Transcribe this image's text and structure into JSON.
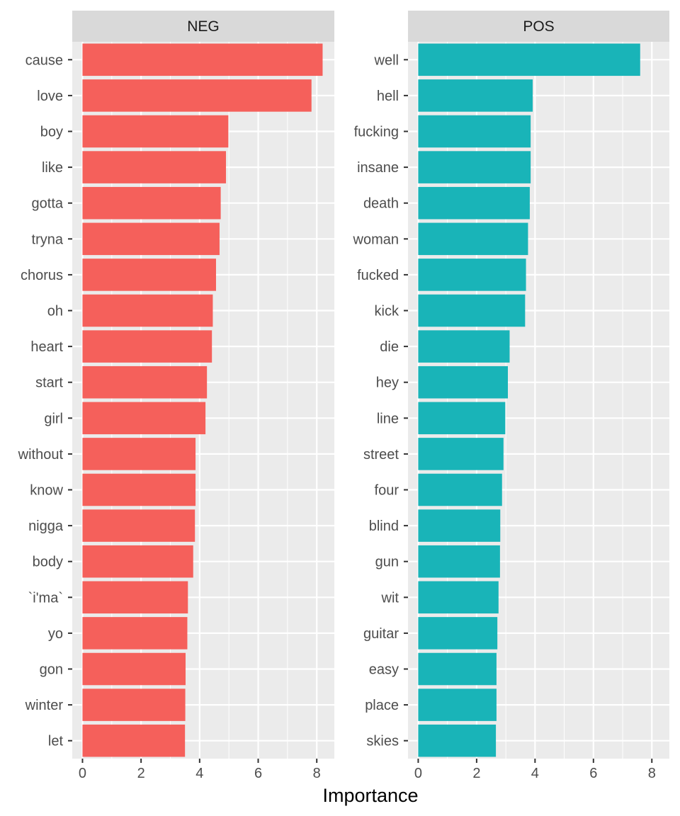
{
  "chart_data": {
    "type": "bar",
    "orientation": "horizontal",
    "xlabel": "Importance",
    "ylabel": "",
    "xlim": [
      -0.35,
      8.6
    ],
    "x_ticks": [
      0,
      2,
      4,
      6,
      8
    ],
    "x_tick_labels": [
      "0",
      "2",
      "4",
      "6",
      "8"
    ],
    "grid": true,
    "legend": "none",
    "panels": [
      {
        "strip_label": "NEG",
        "color": "#F8766D",
        "bar_color": "#F5605B",
        "categories": [
          "cause",
          "love",
          "boy",
          "like",
          "gotta",
          "tryna",
          "chorus",
          "oh",
          "heart",
          "start",
          "girl",
          "without",
          "know",
          "nigga",
          "body",
          "`i'ma`",
          "yo",
          "gon",
          "winter",
          "let"
        ],
        "values": [
          8.2,
          7.82,
          4.98,
          4.9,
          4.72,
          4.68,
          4.56,
          4.45,
          4.42,
          4.25,
          4.2,
          3.86,
          3.86,
          3.84,
          3.78,
          3.6,
          3.58,
          3.52,
          3.51,
          3.5
        ]
      },
      {
        "strip_label": "POS",
        "color": "#00BFC4",
        "bar_color": "#19B4B8",
        "categories": [
          "well",
          "hell",
          "fucking",
          "insane",
          "death",
          "woman",
          "fucked",
          "kick",
          "die",
          "hey",
          "line",
          "street",
          "four",
          "blind",
          "gun",
          "wit",
          "guitar",
          "easy",
          "place",
          "skies"
        ],
        "values": [
          7.6,
          3.92,
          3.85,
          3.85,
          3.82,
          3.76,
          3.69,
          3.66,
          3.13,
          3.07,
          2.98,
          2.92,
          2.87,
          2.81,
          2.8,
          2.75,
          2.71,
          2.68,
          2.68,
          2.66
        ]
      }
    ]
  }
}
